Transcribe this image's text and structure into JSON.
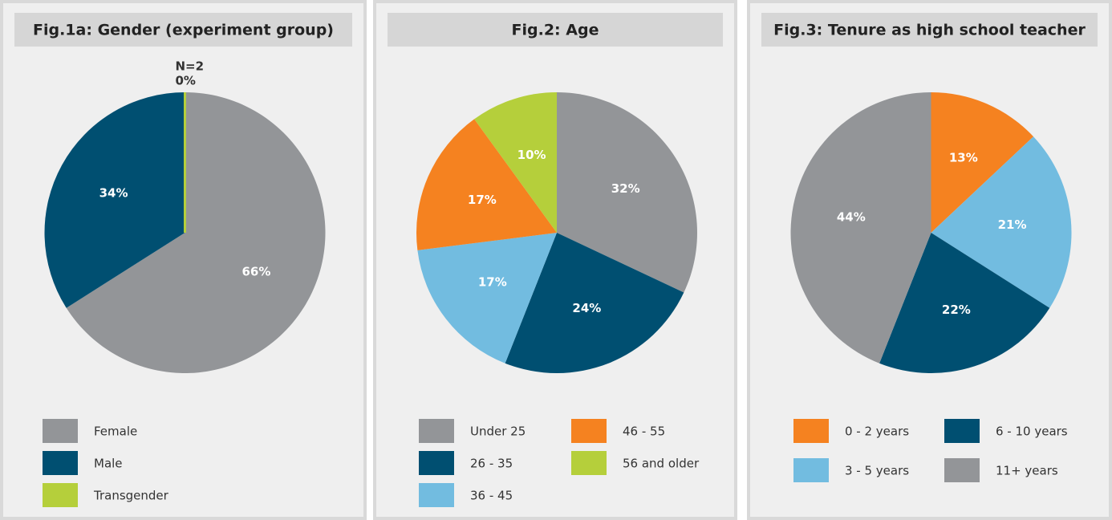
{
  "chart_data": [
    {
      "type": "pie",
      "title": "Fig.1a: Gender (experiment group)",
      "categories": [
        "Female",
        "Male",
        "Transgender"
      ],
      "values": [
        66,
        34,
        0
      ],
      "value_labels": [
        "66%",
        "34%",
        "0%"
      ],
      "colors": [
        "#939598",
        "#004f71",
        "#b5cf3b"
      ],
      "annotation": "N=2"
    },
    {
      "type": "pie",
      "title": "Fig.2: Age",
      "categories": [
        "Under 25",
        "26 - 35",
        "36 - 45",
        "46 - 55",
        "56 and older"
      ],
      "values": [
        32,
        24,
        17,
        17,
        10
      ],
      "value_labels": [
        "32%",
        "24%",
        "17%",
        "17%",
        "10%"
      ],
      "colors": [
        "#939598",
        "#004f71",
        "#72bce0",
        "#f58220",
        "#b5cf3b"
      ]
    },
    {
      "type": "pie",
      "title": "Fig.3: Tenure as high school teacher",
      "categories": [
        "0 - 2 years",
        "3 - 5 years",
        "6 - 10 years",
        "11+ years"
      ],
      "values": [
        13,
        21,
        22,
        44
      ],
      "value_labels": [
        "13%",
        "21%",
        "22%",
        "44%"
      ],
      "colors": [
        "#f58220",
        "#72bce0",
        "#004f71",
        "#939598"
      ]
    }
  ]
}
